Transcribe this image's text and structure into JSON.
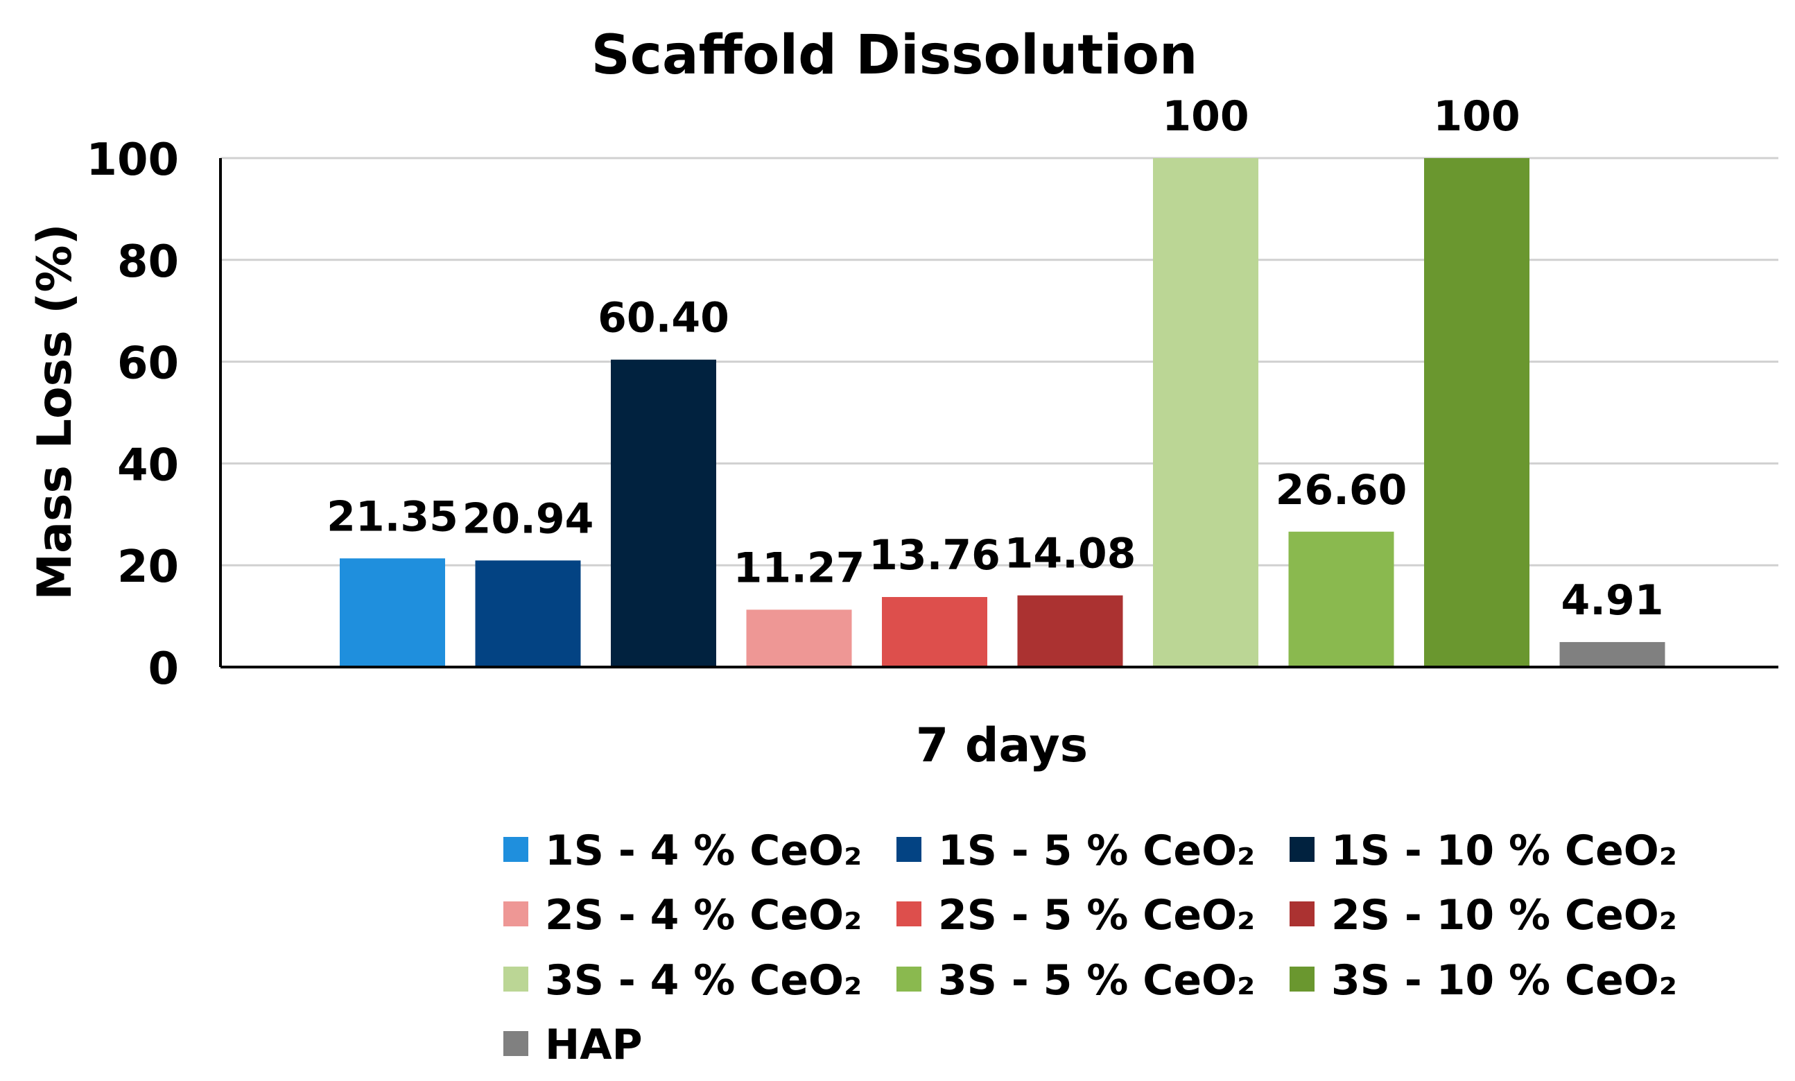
{
  "chart_data": {
    "type": "bar",
    "title": "Scaffold Dissolution",
    "xlabel": "7 days",
    "ylabel": "Mass Loss (%)",
    "ylim": [
      0,
      100
    ],
    "yticks": [
      0,
      20,
      40,
      60,
      80,
      100
    ],
    "ytick_labels": [
      "0",
      "20",
      "40",
      "60",
      "80",
      "100"
    ],
    "grid": true,
    "legend_position": "bottom",
    "series": [
      {
        "name": "1S - 4 % CeO₂",
        "value": 21.35,
        "label": "21.35",
        "color": "#1f8fdd"
      },
      {
        "name": "1S - 5 % CeO₂",
        "value": 20.94,
        "label": "20.94",
        "color": "#034383"
      },
      {
        "name": "1S - 10 % CeO₂",
        "value": 60.4,
        "label": "60.40",
        "color": "#01223f"
      },
      {
        "name": "2S - 4 % CeO₂",
        "value": 11.27,
        "label": "11.27",
        "color": "#ee9795"
      },
      {
        "name": "2S - 5 % CeO₂",
        "value": 13.76,
        "label": "13.76",
        "color": "#dd4f4c"
      },
      {
        "name": "2S - 10 % CeO₂",
        "value": 14.08,
        "label": "14.08",
        "color": "#ab3231"
      },
      {
        "name": "3S - 4 % CeO₂",
        "value": 100,
        "label": "100",
        "color": "#bbd695"
      },
      {
        "name": "3S - 5 % CeO₂",
        "value": 26.6,
        "label": "26.60",
        "color": "#8ab94f"
      },
      {
        "name": "3S - 10 % CeO₂",
        "value": 100,
        "label": "100",
        "color": "#6a972f"
      },
      {
        "name": "HAP",
        "value": 4.91,
        "label": "4.91",
        "color": "#808080"
      }
    ]
  }
}
